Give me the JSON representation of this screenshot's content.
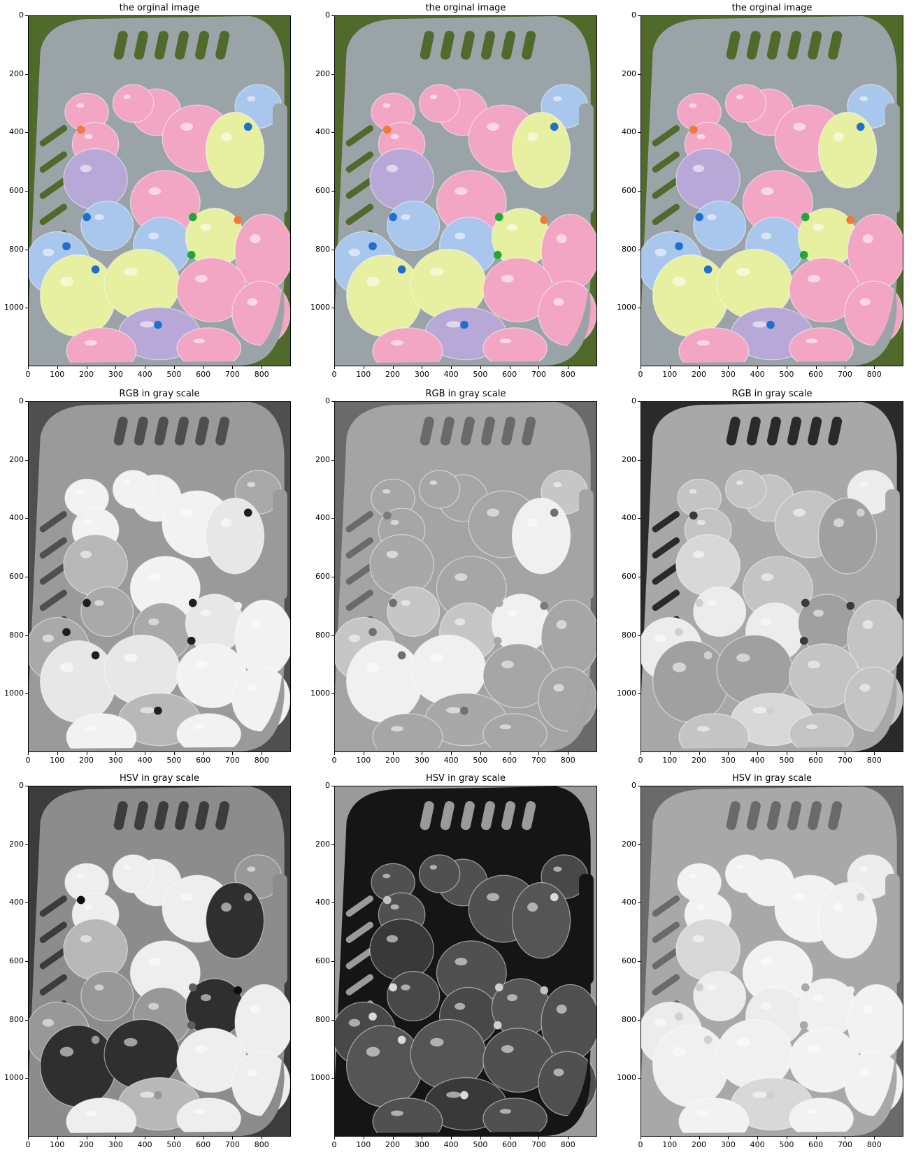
{
  "figure": {
    "rows": [
      {
        "panels": [
          {
            "title": "the orginal image",
            "variant": "color"
          },
          {
            "title": "the orginal image",
            "variant": "color"
          },
          {
            "title": "the orginal image",
            "variant": "color"
          }
        ]
      },
      {
        "panels": [
          {
            "title": "RGB in gray scale",
            "variant": "gray-r"
          },
          {
            "title": "RGB in gray scale",
            "variant": "gray-g"
          },
          {
            "title": "RGB in gray scale",
            "variant": "gray-b"
          }
        ]
      },
      {
        "panels": [
          {
            "title": "HSV in gray scale",
            "variant": "hue"
          },
          {
            "title": "HSV in gray scale",
            "variant": "sat"
          },
          {
            "title": "HSV in gray scale",
            "variant": "val"
          }
        ]
      }
    ],
    "x_ticks": [
      "0",
      "100",
      "200",
      "300",
      "400",
      "500",
      "600",
      "700",
      "800"
    ],
    "y_ticks": [
      "0",
      "200",
      "400",
      "600",
      "800",
      "1000"
    ],
    "image_extent": {
      "width": 900,
      "height": 1200
    }
  },
  "colors": {
    "grass": "#4f6a2a",
    "basket": "#9aa4a8",
    "balloon_pink": "#f2a6c4",
    "balloon_yellow": "#e7f0a0",
    "balloon_blue": "#a9c6ec",
    "balloon_purple": "#b8a8d8",
    "knot_blue": "#1f6fd0",
    "knot_green": "#1fa83a",
    "knot_orange": "#f07a3a"
  }
}
